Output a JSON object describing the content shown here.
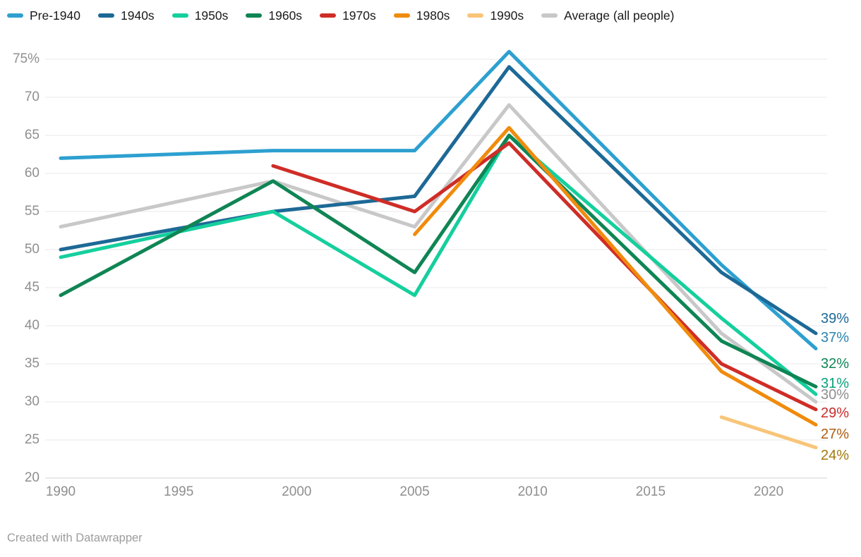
{
  "chart_data": {
    "type": "line",
    "x": [
      1990,
      1999,
      2005,
      2009,
      2018,
      2022
    ],
    "x_axis": {
      "ticks": [
        1990,
        1995,
        2000,
        2005,
        2010,
        2015,
        2020
      ]
    },
    "y_axis": {
      "min": 20,
      "max": 75,
      "tick_step": 5,
      "top_tick_label": "75%",
      "unit": "%"
    },
    "grid": "horizontal",
    "legend_position": "top",
    "series": [
      {
        "key": "average",
        "name": "Average (all people)",
        "color": "#c8c8c8",
        "label_color": "#8e8e8e",
        "values": [
          53,
          59,
          53,
          69,
          39,
          30
        ],
        "end_label": "30%"
      },
      {
        "key": "pre1940",
        "name": "Pre-1940",
        "color": "#2da0d0",
        "label_color": "#2b84ae",
        "values": [
          62,
          63,
          63,
          76,
          48,
          37
        ],
        "end_label": "37%"
      },
      {
        "key": "s1940",
        "name": "1940s",
        "color": "#1d6996",
        "label_color": "#1d6996",
        "values": [
          50,
          55,
          57,
          74,
          47,
          39
        ],
        "end_label": "39%"
      },
      {
        "key": "s1950",
        "name": "1950s",
        "color": "#15cf9d",
        "label_color": "#0ba07a",
        "values": [
          49,
          55,
          44,
          65,
          41,
          31
        ],
        "end_label": "31%"
      },
      {
        "key": "s1960",
        "name": "1960s",
        "color": "#0f8554",
        "label_color": "#0f8554",
        "values": [
          44,
          59,
          47,
          65,
          38,
          32
        ],
        "end_label": "32%"
      },
      {
        "key": "s1970",
        "name": "1970s",
        "color": "#cf2d27",
        "label_color": "#c92b2b",
        "values": [
          null,
          61,
          55,
          64,
          35,
          29
        ],
        "end_label": "29%"
      },
      {
        "key": "s1980",
        "name": "1980s",
        "color": "#f08b0c",
        "label_color": "#b05c10",
        "values": [
          null,
          null,
          52,
          66,
          34,
          27
        ],
        "end_label": "27%"
      },
      {
        "key": "s1990",
        "name": "1990s",
        "color": "#f8c579",
        "label_color": "#a1790e",
        "values": [
          null,
          null,
          null,
          null,
          28,
          24
        ],
        "end_label": "24%"
      }
    ],
    "legend_order": [
      "pre1940",
      "s1940",
      "s1950",
      "s1960",
      "s1970",
      "s1980",
      "s1990",
      "average"
    ]
  },
  "footer": {
    "credit": "Created with Datawrapper"
  }
}
